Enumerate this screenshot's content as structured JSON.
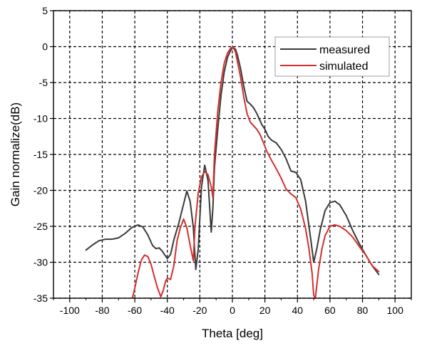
{
  "chart_data": {
    "type": "line",
    "title": "",
    "xlabel": "Theta [deg]",
    "ylabel": "Gain normalize(dB)",
    "xlim": [
      -110,
      110
    ],
    "ylim": [
      -35,
      5
    ],
    "xticks": [
      -100,
      -80,
      -60,
      -40,
      -20,
      0,
      20,
      40,
      60,
      80,
      100
    ],
    "yticks": [
      5,
      0,
      -5,
      -10,
      -15,
      -20,
      -25,
      -30,
      -35
    ],
    "grid": true,
    "grid_style": "dashed",
    "legend_position": "top-right",
    "series": [
      {
        "name": "measured",
        "color": "#3a3a3a",
        "x": [
          -90,
          -86,
          -82,
          -78,
          -74,
          -70,
          -66,
          -62,
          -58,
          -55,
          -52,
          -49,
          -47,
          -45,
          -43,
          -40,
          -38,
          -36,
          -33,
          -30,
          -28,
          -26,
          -24,
          -22.5,
          -21,
          -19,
          -17,
          -15,
          -13,
          -12,
          -11,
          -9,
          -7,
          -5,
          -3,
          -1,
          0,
          1,
          2,
          3,
          5,
          7,
          9,
          11,
          13,
          15,
          18,
          20,
          22,
          24,
          27,
          30,
          33,
          36,
          39,
          42,
          45,
          48,
          50,
          52,
          54,
          57,
          60,
          63,
          66,
          70,
          74,
          78,
          82,
          86,
          90
        ],
        "y": [
          -28.3,
          -27.6,
          -27.0,
          -26.8,
          -26.8,
          -26.6,
          -26.0,
          -25.2,
          -24.8,
          -25.1,
          -26.2,
          -27.7,
          -28.1,
          -28.0,
          -28.5,
          -29.5,
          -28.9,
          -26.9,
          -24.6,
          -21.9,
          -20.1,
          -21.5,
          -25.2,
          -31.0,
          -28.2,
          -19.5,
          -16.5,
          -18.6,
          -25.8,
          -22.5,
          -16.8,
          -11.5,
          -6.8,
          -3.5,
          -1.5,
          -0.5,
          -0.2,
          -0.2,
          -0.4,
          -1.1,
          -3.0,
          -5.5,
          -7.6,
          -8.0,
          -8.5,
          -9.3,
          -10.8,
          -11.5,
          -12.5,
          -13.0,
          -13.4,
          -14.3,
          -15.6,
          -17.3,
          -17.5,
          -18.5,
          -21.5,
          -26.5,
          -30.0,
          -28.0,
          -25.5,
          -22.8,
          -21.7,
          -21.5,
          -22.0,
          -23.5,
          -25.6,
          -27.4,
          -29.0,
          -30.5,
          -31.7
        ]
      },
      {
        "name": "simulated",
        "color": "#d32f2f",
        "x": [
          -61.5,
          -60,
          -58,
          -56,
          -54,
          -52,
          -50,
          -48,
          -46,
          -44,
          -42.5,
          -41,
          -40,
          -38,
          -36,
          -34,
          -32,
          -30,
          -28,
          -26,
          -24,
          -23,
          -21,
          -19,
          -17,
          -15,
          -13,
          -12,
          -11,
          -9,
          -7,
          -5,
          -3,
          -1,
          0,
          1,
          2,
          3,
          5,
          7,
          9,
          11,
          13,
          15,
          17,
          19,
          21,
          24,
          27,
          30,
          33,
          36,
          39,
          42,
          45,
          47,
          49,
          50,
          51,
          53,
          55,
          57,
          60,
          63,
          66,
          70,
          74,
          78,
          82,
          86,
          90
        ],
        "y": [
          -35.0,
          -33.6,
          -31.5,
          -29.7,
          -29.0,
          -29.2,
          -30.3,
          -32.0,
          -33.6,
          -34.8,
          -33.9,
          -32.6,
          -32.2,
          -32.4,
          -30.5,
          -27.0,
          -25.2,
          -24.0,
          -25.2,
          -27.6,
          -29.8,
          -25.0,
          -20.4,
          -18.1,
          -17.4,
          -17.8,
          -19.5,
          -21.0,
          -15.0,
          -9.0,
          -5.0,
          -2.3,
          -0.9,
          -0.2,
          -0.1,
          -0.3,
          -0.8,
          -2.0,
          -4.2,
          -7.0,
          -9.3,
          -10.5,
          -11.0,
          -11.5,
          -12.2,
          -13.3,
          -14.5,
          -15.8,
          -17.0,
          -18.3,
          -19.8,
          -20.5,
          -21.0,
          -22.6,
          -25.3,
          -28.0,
          -31.5,
          -34.6,
          -35.0,
          -31.0,
          -28.2,
          -26.3,
          -25.0,
          -24.8,
          -25.0,
          -25.6,
          -26.5,
          -27.8,
          -29.0,
          -30.5,
          -31.3
        ]
      }
    ]
  }
}
